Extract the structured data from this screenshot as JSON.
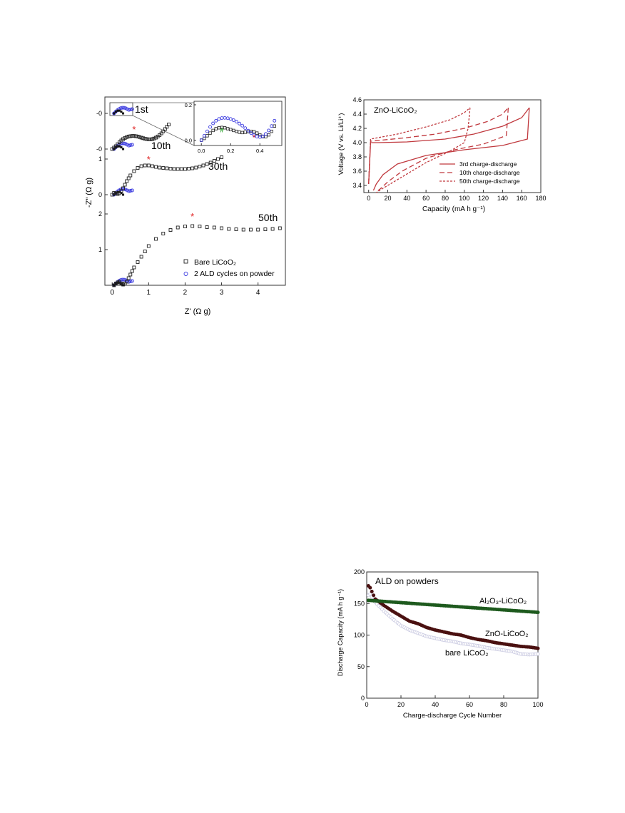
{
  "colors": {
    "bare": "#222222",
    "ald": "#3a3ae0",
    "star": "#e02020",
    "hash": "#1a9a1a",
    "voltage": "#c0393e",
    "al2o3": "#1e5a1e",
    "zno": "#4a1010",
    "bare_cap": "#c8c8e0"
  },
  "chart_data": [
    {
      "type": "scatter",
      "id": "nyquist",
      "xlabel": "Z' (Ω g)",
      "ylabel": "-Z\" (Ω g)",
      "xlim": [
        -0.2,
        4.75
      ],
      "x_ticks": [
        "0",
        "1",
        "2",
        "3",
        "4"
      ],
      "stacked_panels": [
        {
          "label": "1st",
          "tick_labels": [
            "-0"
          ]
        },
        {
          "label": "10th",
          "tick_labels": [
            "-0"
          ]
        },
        {
          "label": "30th",
          "tick_labels": [
            "0",
            "1"
          ]
        },
        {
          "label": "50th",
          "tick_labels": [
            "1",
            "2"
          ]
        }
      ],
      "legend": [
        "Bare LiCoO₂",
        "2 ALD cycles on powder"
      ],
      "legend_position": "bottom-right",
      "markers": {
        "star": "*",
        "hash": "#"
      },
      "series": [
        {
          "name": "Bare LiCoO₂",
          "panel": "50th",
          "x": [
            0.05,
            0.1,
            0.15,
            0.2,
            0.25,
            0.3,
            0.35,
            0.4,
            0.45,
            0.5,
            0.55,
            0.6,
            0.7,
            0.8,
            0.9,
            1.0,
            1.2,
            1.4,
            1.6,
            1.8,
            2.0,
            2.2,
            2.4,
            2.6,
            2.8,
            3.0,
            3.2,
            3.4,
            3.6,
            3.8,
            4.0,
            4.2,
            4.4,
            4.6
          ],
          "y": [
            0.0,
            0.05,
            0.08,
            0.1,
            0.05,
            0.02,
            0.05,
            0.1,
            0.2,
            0.3,
            0.4,
            0.5,
            0.65,
            0.8,
            0.95,
            1.1,
            1.3,
            1.45,
            1.55,
            1.62,
            1.65,
            1.66,
            1.65,
            1.63,
            1.62,
            1.6,
            1.58,
            1.57,
            1.56,
            1.56,
            1.56,
            1.57,
            1.58,
            1.6
          ]
        },
        {
          "name": "Bare LiCoO₂",
          "panel": "30th",
          "x": [
            0.0,
            0.05,
            0.1,
            0.15,
            0.2,
            0.25,
            0.3,
            0.35,
            0.4,
            0.45,
            0.5,
            0.6,
            0.7,
            0.8,
            0.9,
            1.0,
            1.1,
            1.2,
            1.3,
            1.4,
            1.5,
            1.6,
            1.7,
            1.8,
            1.9,
            2.0,
            2.1,
            2.2,
            2.3,
            2.4,
            2.5,
            2.6,
            2.7,
            2.8,
            2.9,
            3.0
          ],
          "y": [
            0.0,
            0.05,
            0.04,
            0.02,
            0.04,
            0.1,
            0.18,
            0.28,
            0.38,
            0.46,
            0.54,
            0.66,
            0.75,
            0.8,
            0.82,
            0.82,
            0.8,
            0.78,
            0.76,
            0.75,
            0.74,
            0.73,
            0.72,
            0.72,
            0.72,
            0.72,
            0.73,
            0.74,
            0.76,
            0.79,
            0.82,
            0.86,
            0.9,
            0.95,
            1.0,
            1.05
          ]
        },
        {
          "name": "Bare LiCoO₂",
          "panel": "10th",
          "x": [
            0.0,
            0.05,
            0.1,
            0.15,
            0.2,
            0.25,
            0.3,
            0.35,
            0.4,
            0.45,
            0.5,
            0.55,
            0.6,
            0.65,
            0.7,
            0.75,
            0.8,
            0.85,
            0.9,
            0.95,
            1.0,
            1.05,
            1.1,
            1.15,
            1.2,
            1.25,
            1.3,
            1.35,
            1.4,
            1.45,
            1.5,
            1.55
          ],
          "y": [
            0.0,
            0.05,
            0.1,
            0.17,
            0.24,
            0.3,
            0.35,
            0.39,
            0.42,
            0.44,
            0.45,
            0.46,
            0.46,
            0.45,
            0.44,
            0.42,
            0.4,
            0.38,
            0.36,
            0.35,
            0.34,
            0.34,
            0.35,
            0.37,
            0.4,
            0.44,
            0.49,
            0.55,
            0.62,
            0.7,
            0.78,
            0.86
          ]
        },
        {
          "name": "Bare LiCoO₂",
          "panel": "inset",
          "x": [
            0.0,
            0.02,
            0.04,
            0.06,
            0.08,
            0.1,
            0.12,
            0.14,
            0.16,
            0.18,
            0.2,
            0.22,
            0.24,
            0.26,
            0.28,
            0.3,
            0.32,
            0.34,
            0.36,
            0.38,
            0.4,
            0.42,
            0.44,
            0.46,
            0.48,
            0.5
          ],
          "y": [
            0.0,
            0.01,
            0.025,
            0.04,
            0.055,
            0.065,
            0.07,
            0.072,
            0.07,
            0.065,
            0.06,
            0.055,
            0.05,
            0.045,
            0.043,
            0.045,
            0.048,
            0.05,
            0.048,
            0.04,
            0.03,
            0.02,
            0.02,
            0.03,
            0.05,
            0.08
          ]
        },
        {
          "name": "2 ALD cycles on powder",
          "panel": "inset",
          "x": [
            0.0,
            0.02,
            0.04,
            0.06,
            0.08,
            0.1,
            0.12,
            0.14,
            0.16,
            0.18,
            0.2,
            0.22,
            0.24,
            0.26,
            0.28,
            0.3,
            0.32,
            0.34,
            0.36,
            0.38,
            0.4,
            0.42,
            0.44,
            0.46,
            0.48,
            0.5
          ],
          "y": [
            0.0,
            0.025,
            0.05,
            0.075,
            0.095,
            0.11,
            0.12,
            0.125,
            0.126,
            0.124,
            0.12,
            0.113,
            0.105,
            0.094,
            0.082,
            0.068,
            0.054,
            0.04,
            0.028,
            0.02,
            0.018,
            0.022,
            0.035,
            0.055,
            0.08,
            0.11
          ]
        }
      ],
      "inset": {
        "xlim": [
          -0.05,
          0.55
        ],
        "ylim": [
          -0.03,
          0.22
        ],
        "x_ticks": [
          "0.0",
          "0.2",
          "0.4"
        ],
        "y_ticks": [
          "0.0",
          "0.2"
        ]
      }
    },
    {
      "type": "line",
      "id": "voltage",
      "title": "ZnO-LiCoO₂",
      "xlabel": "Capacity (mA h g⁻¹)",
      "ylabel": "Voltage (V vs. Li/Li⁺)",
      "xlim": [
        -5,
        180
      ],
      "ylim": [
        3.3,
        4.6
      ],
      "x_ticks": [
        0,
        20,
        40,
        60,
        80,
        100,
        120,
        140,
        160,
        180
      ],
      "y_ticks": [
        3.4,
        3.6,
        3.8,
        4.0,
        4.2,
        4.4,
        4.6
      ],
      "y_tick_labels": [
        "3.4",
        "3.6",
        "3.8",
        "4.0",
        "4.2",
        "4.4",
        "4.6"
      ],
      "legend": [
        "3rd charge-discharge",
        "10th charge-discharge",
        "50th charge-discharge"
      ],
      "legend_position": "bottom-right",
      "series": [
        {
          "name": "3rd charge-discharge",
          "dash": "solid",
          "charge_x": [
            0,
            2,
            10,
            40,
            80,
            110,
            140,
            160,
            168
          ],
          "charge_y": [
            3.42,
            4.0,
            4.0,
            4.01,
            4.05,
            4.12,
            4.23,
            4.35,
            4.49
          ],
          "discharge_x": [
            168,
            166,
            140,
            100,
            60,
            30,
            15,
            8,
            5
          ],
          "discharge_y": [
            4.49,
            4.05,
            3.96,
            3.9,
            3.82,
            3.7,
            3.55,
            3.42,
            3.33
          ]
        },
        {
          "name": "10th charge-discharge",
          "dash": "dashed",
          "charge_x": [
            0,
            2,
            10,
            40,
            70,
            100,
            125,
            140,
            146
          ],
          "charge_y": [
            3.42,
            4.02,
            4.03,
            4.07,
            4.12,
            4.2,
            4.3,
            4.4,
            4.49
          ],
          "discharge_x": [
            146,
            144,
            120,
            90,
            60,
            35,
            20,
            12,
            8
          ],
          "discharge_y": [
            4.49,
            4.1,
            3.98,
            3.9,
            3.78,
            3.6,
            3.45,
            3.35,
            3.31
          ]
        },
        {
          "name": "50th charge-discharge",
          "dash": "dotted",
          "charge_x": [
            0,
            2,
            10,
            30,
            60,
            85,
            100,
            106
          ],
          "charge_y": [
            3.42,
            4.05,
            4.07,
            4.12,
            4.22,
            4.32,
            4.42,
            4.49
          ],
          "discharge_x": [
            106,
            104,
            100,
            85,
            60,
            35,
            15,
            8
          ],
          "discharge_y": [
            4.49,
            4.2,
            4.0,
            3.88,
            3.72,
            3.52,
            3.36,
            3.3
          ]
        }
      ]
    },
    {
      "type": "scatter",
      "id": "cycling",
      "title": "ALD on powders",
      "xlabel": "Charge-discharge Cycle Number",
      "ylabel": "Discharge Capacity (mA h g⁻¹)",
      "xlim": [
        0,
        100
      ],
      "ylim": [
        0,
        200
      ],
      "x_ticks": [
        0,
        20,
        40,
        60,
        80,
        100
      ],
      "y_ticks": [
        0,
        50,
        100,
        150,
        200
      ],
      "series": [
        {
          "name": "Al₂O₃-LiCoO₂",
          "start": 155,
          "end": 136,
          "shape": "linear"
        },
        {
          "name": "ZnO-LiCoO₂",
          "knots_x": [
            1,
            2,
            5,
            10,
            15,
            20,
            25,
            30,
            35,
            40,
            45,
            50,
            55,
            60,
            65,
            70,
            75,
            80,
            85,
            90,
            95,
            100
          ],
          "knots_y": [
            178,
            175,
            157,
            147,
            138,
            130,
            122,
            118,
            112,
            108,
            105,
            102,
            100,
            96,
            93,
            91,
            88,
            86,
            84,
            82,
            81,
            79
          ]
        },
        {
          "name": "bare LiCoO₂",
          "knots_x": [
            1,
            2,
            5,
            10,
            15,
            20,
            25,
            30,
            35,
            40,
            45,
            50,
            55,
            60,
            65,
            70,
            75,
            80,
            85,
            90,
            95,
            100
          ],
          "knots_y": [
            163,
            165,
            152,
            138,
            126,
            115,
            108,
            103,
            98,
            95,
            92,
            90,
            87,
            85,
            83,
            80,
            78,
            76,
            74,
            70,
            69,
            70
          ]
        }
      ],
      "labels": [
        "Al₂O₃-LiCoO₂",
        "ZnO-LiCoO₂",
        "bare LiCoO₂"
      ]
    }
  ]
}
